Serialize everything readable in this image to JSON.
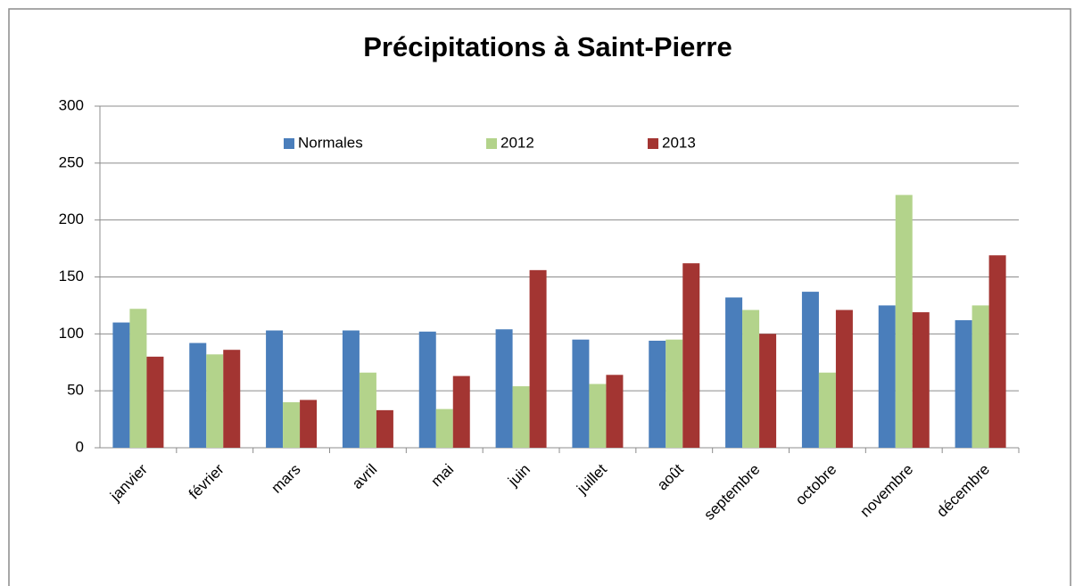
{
  "chart_data": {
    "type": "bar",
    "title": "Précipitations à Saint-Pierre",
    "categories": [
      "janvier",
      "février",
      "mars",
      "avril",
      "mai",
      "juin",
      "juillet",
      "août",
      "septembre",
      "octobre",
      "novembre",
      "décembre"
    ],
    "series": [
      {
        "name": "Normales",
        "color": "#4a7ebb",
        "values": [
          110,
          92,
          103,
          103,
          102,
          104,
          95,
          94,
          132,
          137,
          125,
          112
        ]
      },
      {
        "name": "2012",
        "color": "#b3d38b",
        "values": [
          122,
          82,
          40,
          66,
          34,
          54,
          56,
          95,
          121,
          66,
          222,
          125
        ]
      },
      {
        "name": "2013",
        "color": "#a33532",
        "values": [
          80,
          86,
          42,
          33,
          63,
          156,
          64,
          162,
          100,
          121,
          119,
          169
        ]
      }
    ],
    "ylim": [
      0,
      300
    ],
    "yticks": [
      0,
      50,
      100,
      150,
      200,
      250,
      300
    ],
    "grid": true,
    "legend": "top"
  }
}
